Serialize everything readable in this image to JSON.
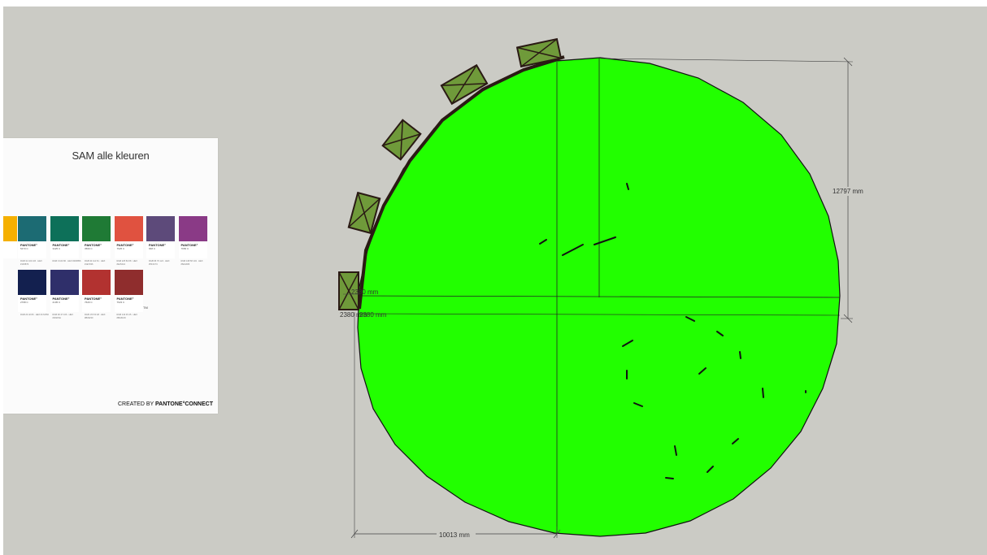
{
  "pantone_sheet": {
    "title": "SAM alle kleuren",
    "tm": "TM",
    "credit_prefix": "CREATED BY",
    "credit_brand": "PANTONE°CONNECT",
    "swatches_row1": [
      {
        "brand": "PANTONE°",
        "code": "5473 C",
        "hex": "#1c6b73",
        "meta": "RGB 31 104 115 · HEX #1F6873"
      },
      {
        "brand": "PANTONE°",
        "code": "3425 C",
        "hex": "#0d7059",
        "meta": "RGB 0 104 86 · HEX #006856"
      },
      {
        "brand": "PANTONE°",
        "code": "3560 C",
        "hex": "#1f7a35",
        "meta": "RGB 30 112 54 · HEX #1E7036"
      },
      {
        "brand": "PANTONE°",
        "code": "7625 C",
        "hex": "#e05240",
        "meta": "RGB 225 84 68 · HEX #E15444"
      },
      {
        "brand": "PANTONE°",
        "code": "668 C",
        "hex": "#5d4a7a",
        "meta": "RGB 95 76 124 · HEX #5F4C7C"
      },
      {
        "brand": "PANTONE°",
        "code": "7656 C",
        "hex": "#8a3a86",
        "meta": "RGB 138 58 134 · HEX #8A3A86"
      }
    ],
    "swatches_row2": [
      {
        "brand": "PANTONE°",
        "code": "2768 C",
        "hex": "#13204f",
        "meta": "RGB 23 32 80 · HEX #172050"
      },
      {
        "brand": "PANTONE°",
        "code": "2105 C",
        "hex": "#2f2f6a",
        "meta": "RGB 48 47 106 · HEX #302F6A"
      },
      {
        "brand": "PANTONE°",
        "code": "7620 C",
        "hex": "#b23230",
        "meta": "RGB 179 50 48 · HEX #B33230"
      },
      {
        "brand": "PANTONE°",
        "code": "7623 C",
        "hex": "#8f2d2d",
        "meta": "RGB 143 45 45 · HEX #8F2D2D"
      }
    ],
    "partial_left_hex": "#f5b000"
  },
  "dimensions": {
    "vertical": "12797 mm",
    "horizontal": "10013 mm",
    "left_top": "2380 mm",
    "left_mid": "2380 mm"
  },
  "colors": {
    "canvas_bg": "#cbcbc5",
    "circle_fill": "#22ff00",
    "box_fill": "#6f9a3a"
  }
}
